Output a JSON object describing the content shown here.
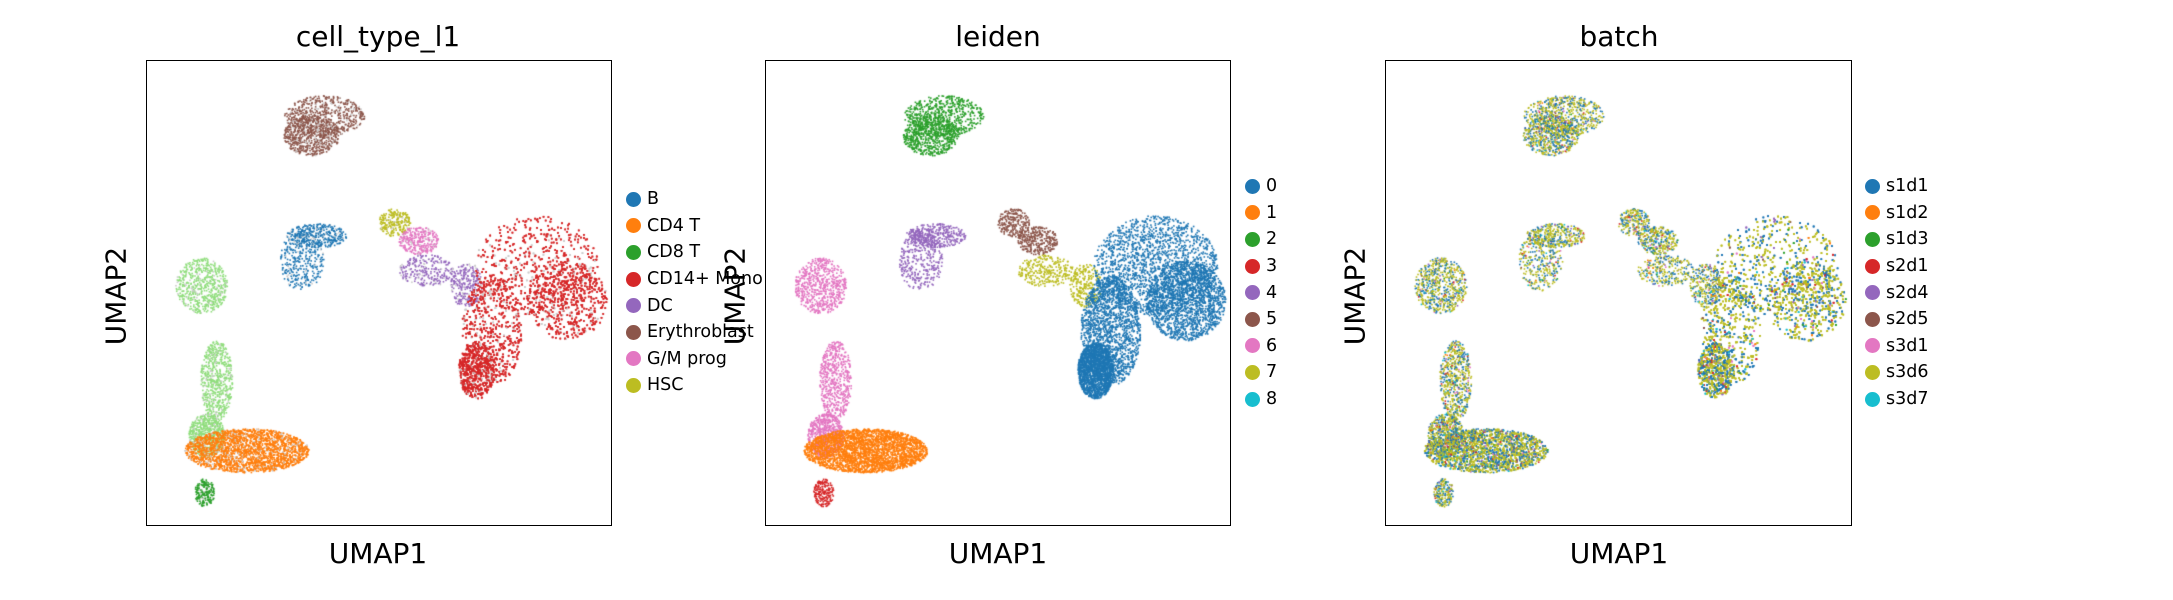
{
  "chart_data": [
    {
      "type": "scatter",
      "title": "cell_type_l1",
      "xlabel": "UMAP1",
      "ylabel": "UMAP2",
      "grid": false,
      "legend": "right",
      "legend_entries": [
        {
          "label": "B",
          "color": "#1f77b4"
        },
        {
          "label": "CD4 T",
          "color": "#ff7f0e"
        },
        {
          "label": "CD8 T",
          "color": "#2ca02c"
        },
        {
          "label": "CD14+ Mono",
          "color": "#d62728"
        },
        {
          "label": "DC",
          "color": "#9467bd"
        },
        {
          "label": "Erythroblast",
          "color": "#8c564b"
        },
        {
          "label": "G/M prog",
          "color": "#e377c2"
        },
        {
          "label": "HSC",
          "color": "#bcbd22"
        }
      ]
    },
    {
      "type": "scatter",
      "title": "leiden",
      "xlabel": "UMAP1",
      "ylabel": "UMAP2",
      "grid": false,
      "legend": "right",
      "legend_entries": [
        {
          "label": "0",
          "color": "#1f77b4"
        },
        {
          "label": "1",
          "color": "#ff7f0e"
        },
        {
          "label": "2",
          "color": "#2ca02c"
        },
        {
          "label": "3",
          "color": "#d62728"
        },
        {
          "label": "4",
          "color": "#9467bd"
        },
        {
          "label": "5",
          "color": "#8c564b"
        },
        {
          "label": "6",
          "color": "#e377c2"
        },
        {
          "label": "7",
          "color": "#bcbd22"
        },
        {
          "label": "8",
          "color": "#17becf"
        }
      ]
    },
    {
      "type": "scatter",
      "title": "batch",
      "xlabel": "UMAP1",
      "ylabel": "UMAP2",
      "grid": false,
      "legend": "right",
      "legend_entries": [
        {
          "label": "s1d1",
          "color": "#1f77b4"
        },
        {
          "label": "s1d2",
          "color": "#ff7f0e"
        },
        {
          "label": "s1d3",
          "color": "#2ca02c"
        },
        {
          "label": "s2d1",
          "color": "#d62728"
        },
        {
          "label": "s2d4",
          "color": "#9467bd"
        },
        {
          "label": "s2d5",
          "color": "#8c564b"
        },
        {
          "label": "s3d1",
          "color": "#e377c2"
        },
        {
          "label": "s3d6",
          "color": "#bcbd22"
        },
        {
          "label": "s3d7",
          "color": "#17becf"
        }
      ]
    }
  ]
}
